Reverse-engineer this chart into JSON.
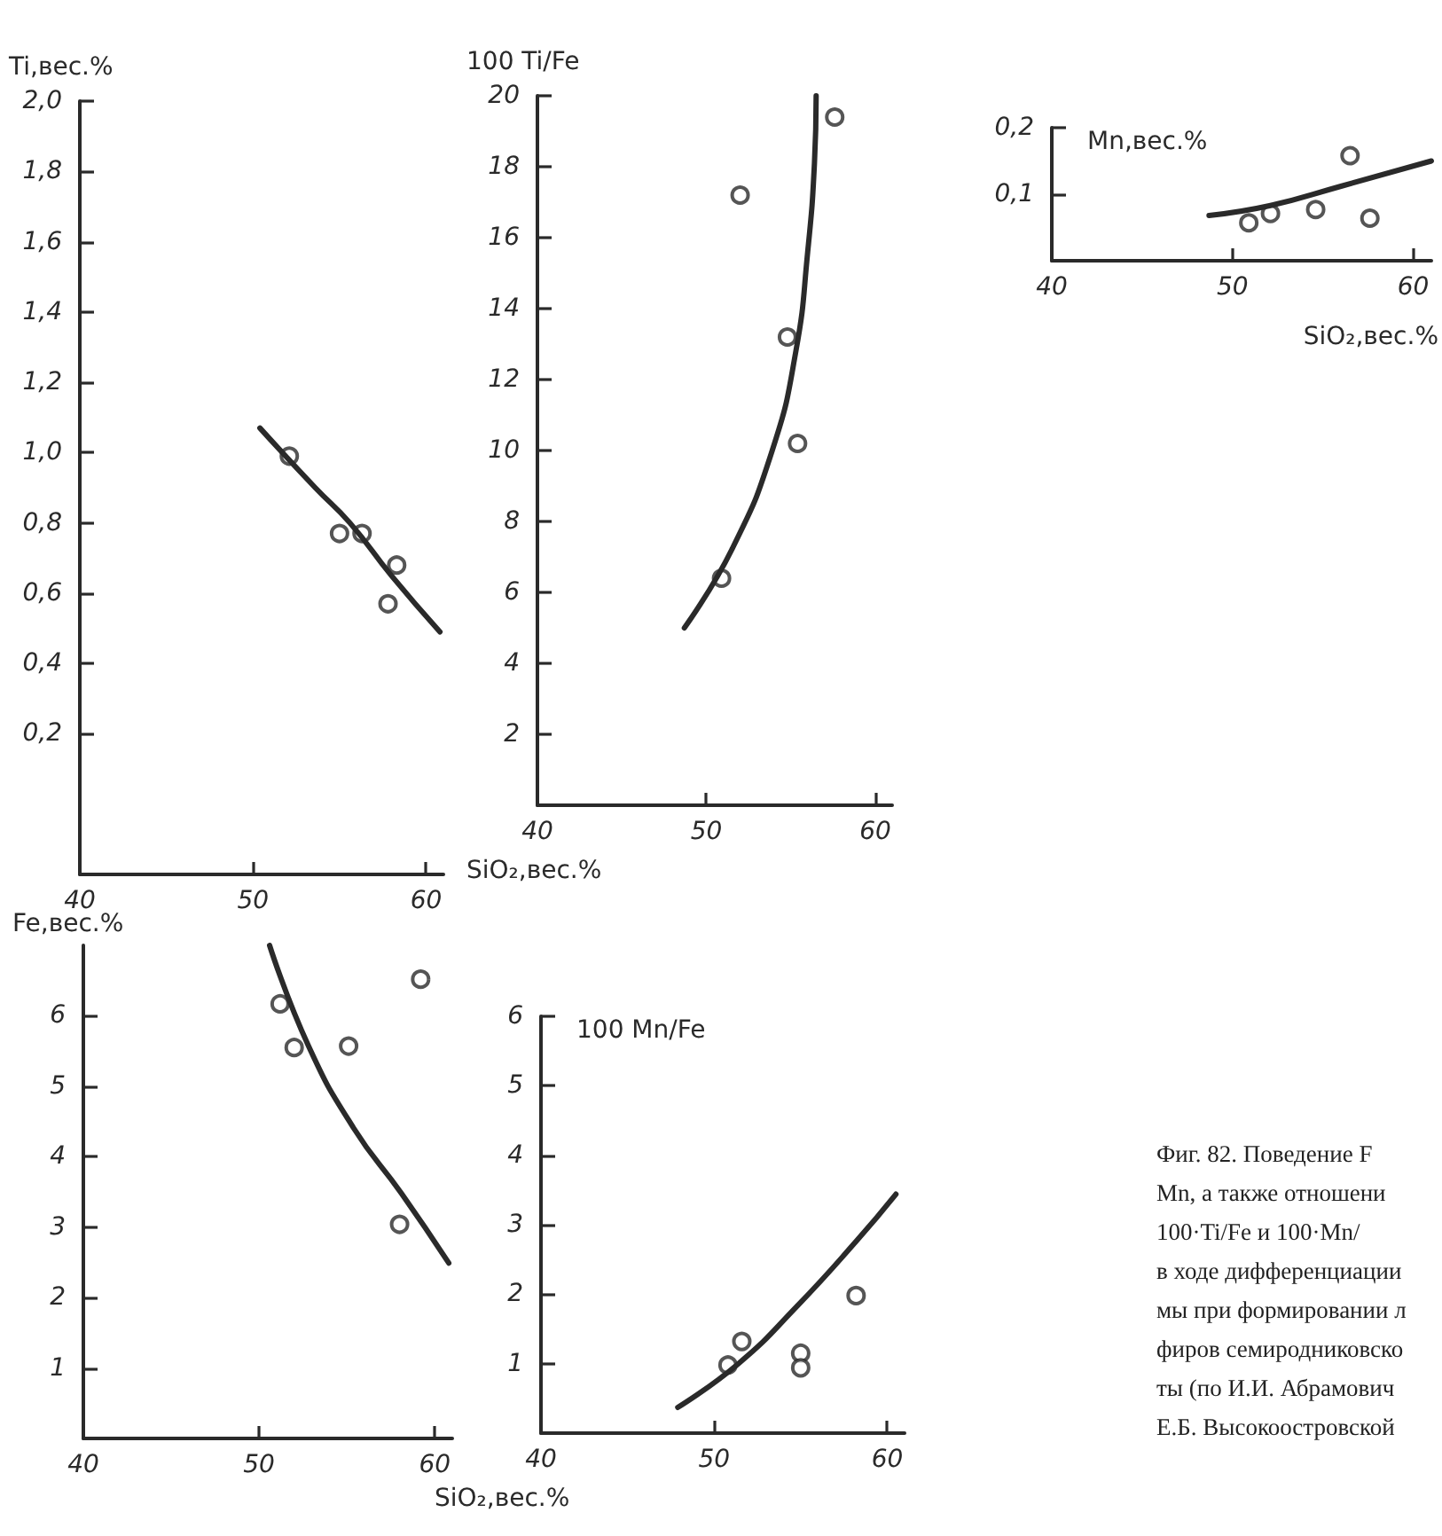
{
  "chart_data": [
    {
      "type": "scatter",
      "ylabel": "Ti,вес.%",
      "xlim": [
        40,
        61
      ],
      "xticks": [
        40,
        50,
        60
      ],
      "ylim": [
        -0.2,
        2.0
      ],
      "yticks": [
        {
          "value": 0.2,
          "label": "0,2"
        },
        {
          "value": 0.4,
          "label": "0,4"
        },
        {
          "value": 0.6,
          "label": "0,6"
        },
        {
          "value": 0.8,
          "label": "0,8"
        },
        {
          "value": 1.0,
          "label": "1,0"
        },
        {
          "value": 1.2,
          "label": "1,2"
        },
        {
          "value": 1.4,
          "label": "1,4"
        },
        {
          "value": 1.6,
          "label": "1,6"
        },
        {
          "value": 1.8,
          "label": "1,8"
        },
        {
          "value": 2.0,
          "label": "2,0"
        }
      ],
      "marker": "circle",
      "series": [
        {
          "type": "scatter",
          "color": "#2a2a2a",
          "x": [
            52.1,
            55.0,
            56.3,
            58.3,
            57.8
          ],
          "values": [
            0.99,
            0.77,
            0.77,
            0.68,
            0.57
          ]
        },
        {
          "type": "line",
          "color": "#2a2a2a",
          "marker": "none",
          "x": [
            50.4,
            53.6,
            55.6,
            58.0,
            60.8
          ],
          "values": [
            1.07,
            0.9,
            0.8,
            0.65,
            0.49
          ]
        }
      ]
    },
    {
      "type": "scatter",
      "ylabel": "100 Ti/Fe",
      "xlabel": "SiO₂,вес.%",
      "xlim": [
        40,
        61
      ],
      "xticks": [
        40,
        50,
        60
      ],
      "ylim": [
        0,
        20
      ],
      "yticks": [
        2,
        4,
        6,
        8,
        10,
        12,
        14,
        16,
        18,
        20
      ],
      "marker": "circle",
      "series": [
        {
          "type": "scatter",
          "color": "#2a2a2a",
          "x": [
            52.0,
            57.6,
            54.8,
            55.4,
            50.9
          ],
          "values": [
            17.2,
            19.4,
            13.2,
            10.2,
            6.4
          ]
        },
        {
          "type": "line",
          "color": "#2a2a2a",
          "marker": "none",
          "x": [
            48.7,
            51.5,
            53.9,
            55.3,
            56.0,
            56.4,
            56.5
          ],
          "values": [
            5.0,
            7.2,
            10.0,
            12.8,
            15.6,
            18.1,
            20
          ]
        }
      ]
    },
    {
      "type": "scatter",
      "ylabel": "Mn,вес.%",
      "xlabel": "SiO₂,вес.%",
      "xlim": [
        40,
        61
      ],
      "xticks": [
        40,
        50,
        60
      ],
      "ylim": [
        0,
        0.2
      ],
      "yticks": [
        {
          "value": 0.1,
          "label": "0,1"
        },
        {
          "value": 0.2,
          "label": "0,2"
        }
      ],
      "marker": "circle",
      "series": [
        {
          "type": "scatter",
          "color": "#2a2a2a",
          "x": [
            50.9,
            52.1,
            54.6,
            56.5,
            57.6
          ],
          "values": [
            0.057,
            0.071,
            0.077,
            0.158,
            0.064
          ]
        },
        {
          "type": "line",
          "color": "#2a2a2a",
          "marker": "none",
          "x": [
            48.7,
            52.1,
            56.0,
            61
          ],
          "values": [
            0.068,
            0.083,
            0.112,
            0.15
          ]
        }
      ]
    },
    {
      "type": "scatter",
      "ylabel": "Fe,вес.%",
      "xlim": [
        40,
        61
      ],
      "xticks": [
        40,
        50,
        60
      ],
      "ylim": [
        0,
        7
      ],
      "yticks": [
        1,
        2,
        3,
        4,
        5,
        6
      ],
      "marker": "circle",
      "series": [
        {
          "type": "scatter",
          "color": "#2a2a2a",
          "x": [
            51.2,
            52.0,
            55.1,
            59.2,
            58.0
          ],
          "values": [
            6.17,
            5.55,
            5.57,
            6.52,
            3.04
          ]
        },
        {
          "type": "line",
          "color": "#2a2a2a",
          "marker": "none",
          "x": [
            50.6,
            52.8,
            55.4,
            58.1,
            60.8
          ],
          "values": [
            7.0,
            5.58,
            4.4,
            3.48,
            2.49
          ]
        }
      ]
    },
    {
      "type": "scatter",
      "ylabel": "100 Mn/Fe",
      "xlabel": "SiO₂,вес.%",
      "xlim": [
        40,
        61
      ],
      "xticks": [
        40,
        50,
        60
      ],
      "ylim": [
        0,
        6
      ],
      "yticks": [
        1,
        2,
        3,
        4,
        5,
        6
      ],
      "marker": "circle",
      "series": [
        {
          "type": "scatter",
          "color": "#2a2a2a",
          "x": [
            50.8,
            51.6,
            55.0,
            55.0,
            58.2
          ],
          "values": [
            0.98,
            1.32,
            1.15,
            0.94,
            1.98
          ]
        },
        {
          "type": "line",
          "color": "#2a2a2a",
          "marker": "none",
          "x": [
            47.9,
            51.4,
            54.8,
            58.2,
            60.5
          ],
          "values": [
            0.37,
            1.0,
            1.83,
            2.76,
            3.44
          ]
        }
      ]
    },
    {
      "type": "other",
      "annotations": [
        "Фиг. 82. Поведение F",
        "Mn, а также отношени",
        "100·Ti/Fe и 100·Mn/",
        "в ходе дифференциации",
        "мы при формировании л",
        "фиров семиродниковско",
        "ты (по И.И. Абрамович",
        "Е.Б. Высокоостровской"
      ]
    }
  ]
}
